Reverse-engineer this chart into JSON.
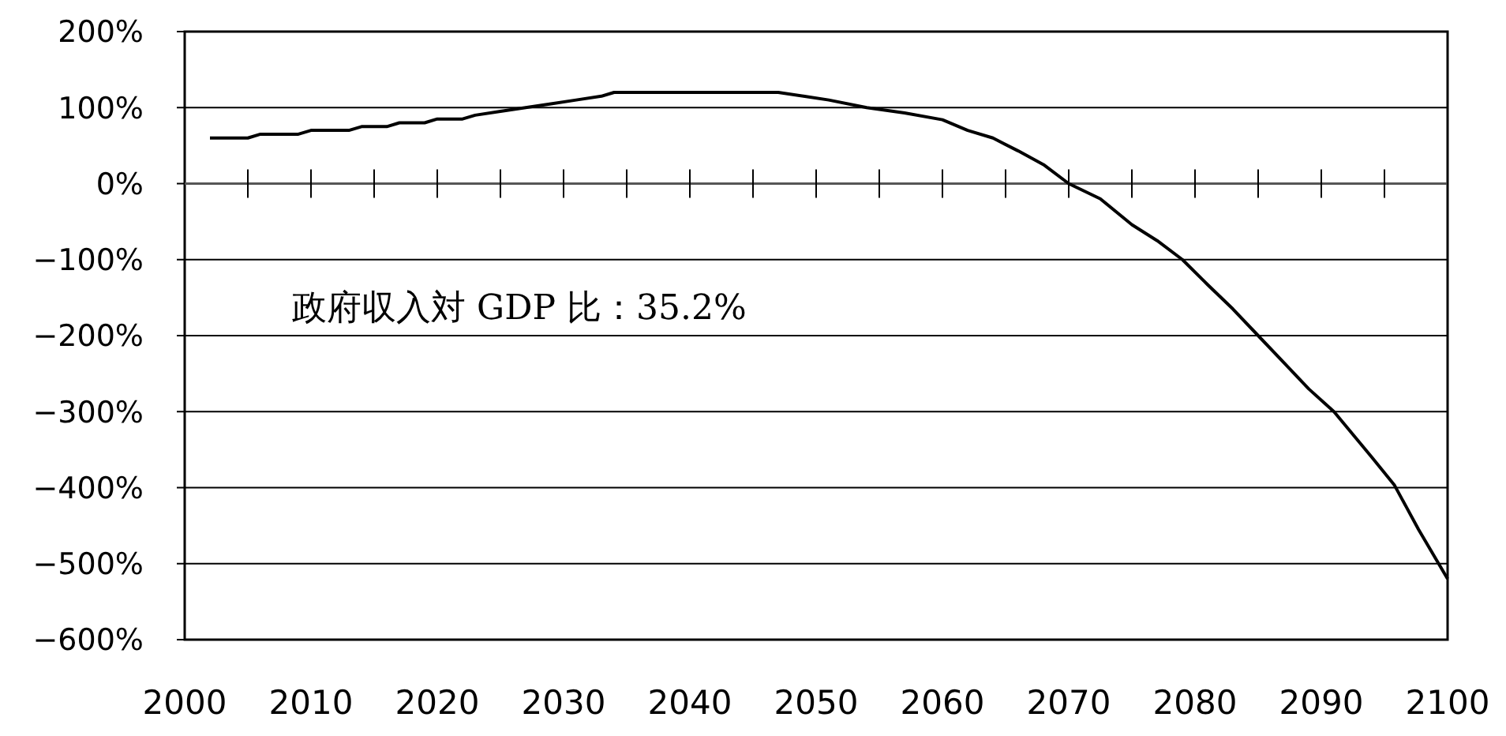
{
  "chart_data": {
    "type": "line",
    "x": [
      2002,
      2005,
      2006,
      2009,
      2010,
      2013,
      2014,
      2016,
      2017,
      2019,
      2020,
      2022,
      2023,
      2025,
      2027,
      2029,
      2031,
      2033,
      2034,
      2040,
      2047,
      2049,
      2051,
      2054,
      2057,
      2060,
      2062,
      2064,
      2066,
      2068,
      2070,
      2072.5,
      2075,
      2077,
      2079,
      2081,
      2083,
      2085,
      2087,
      2089,
      2091,
      2092,
      2094,
      2095.8,
      2097.7,
      2100
    ],
    "series": [
      {
        "color": "#000000",
        "values": [
          60,
          60,
          65,
          65,
          70,
          70,
          75,
          75,
          80,
          80,
          85,
          85,
          90,
          95,
          100,
          105,
          110,
          115,
          120,
          120,
          120,
          115,
          110,
          100,
          93,
          84,
          70,
          60,
          43,
          25,
          0,
          -20,
          -54,
          -75,
          -100,
          -133,
          -165,
          -200,
          -235,
          -270,
          -300,
          -320,
          -360,
          -397,
          -455,
          -520
        ]
      }
    ],
    "xlim": [
      2000,
      2100
    ],
    "xticks": [
      2000,
      2010,
      2020,
      2030,
      2040,
      2050,
      2060,
      2070,
      2080,
      2090,
      2100
    ],
    "ylim": [
      -600,
      200
    ],
    "yticks": [
      {
        "value": 200,
        "label": "200%"
      },
      {
        "value": 100,
        "label": "100%"
      },
      {
        "value": 0,
        "label": "0%"
      },
      {
        "value": -100,
        "label": "−100%"
      },
      {
        "value": -200,
        "label": "−200%"
      },
      {
        "value": -300,
        "label": "−300%"
      },
      {
        "value": -400,
        "label": "−400%"
      },
      {
        "value": -500,
        "label": "−500%"
      },
      {
        "value": -600,
        "label": "−600%"
      }
    ],
    "grid": "y",
    "marker": "none",
    "line_style": "solid",
    "annotations": [
      "政府収入対 GDP 比：35.2%"
    ]
  }
}
